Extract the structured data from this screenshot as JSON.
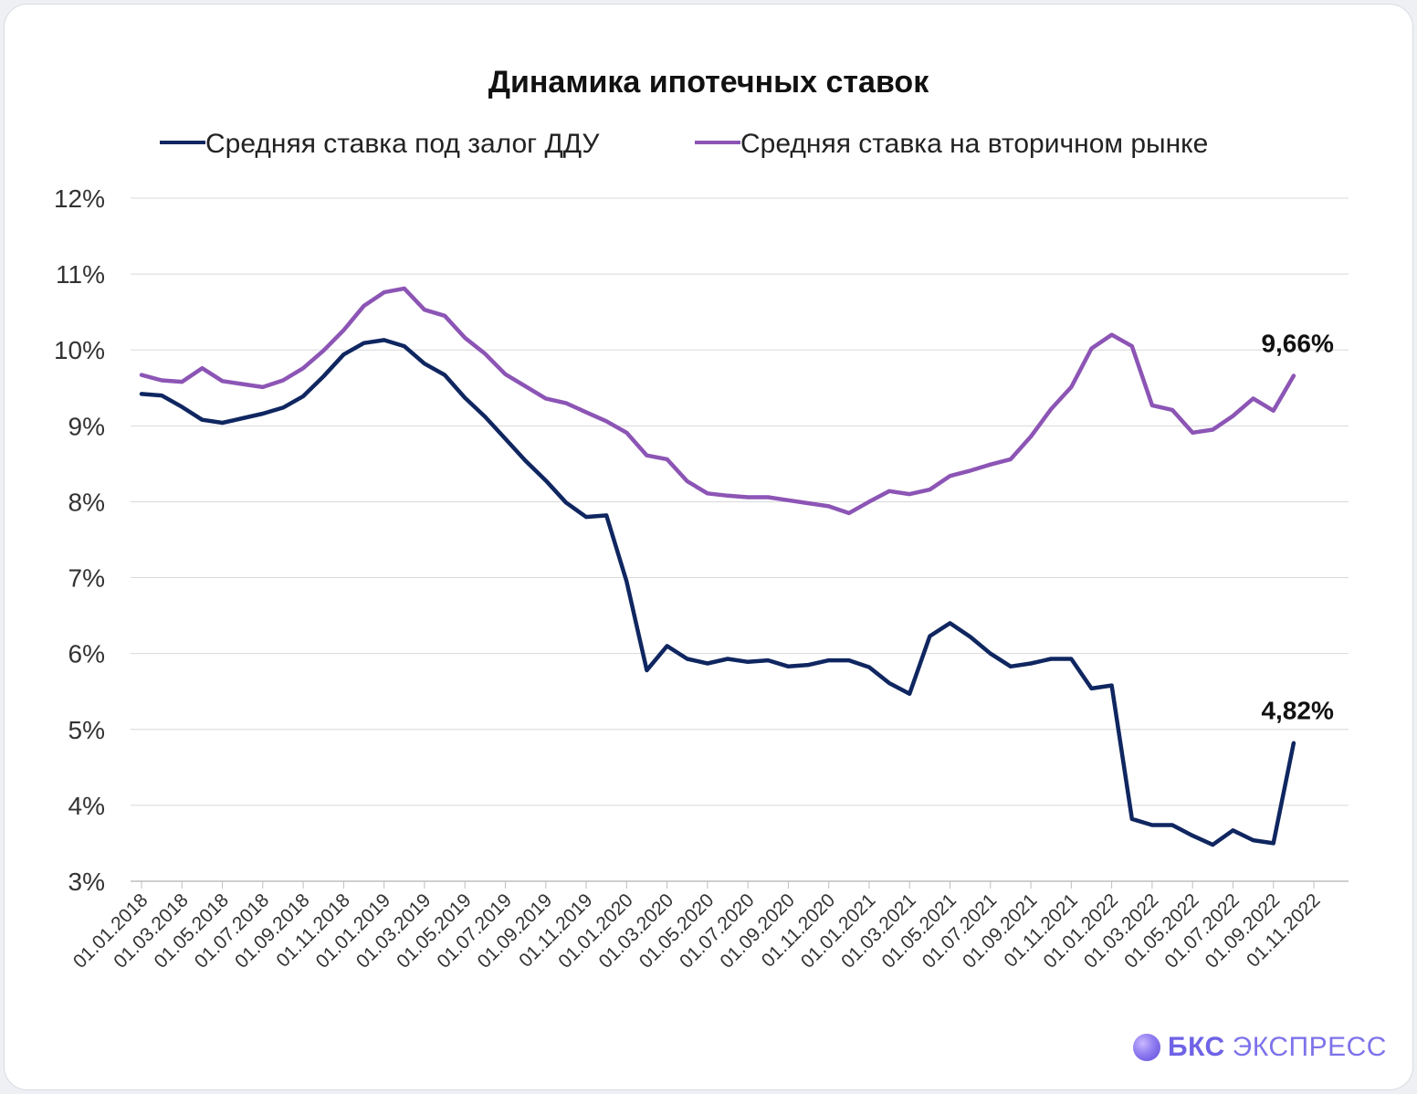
{
  "chart_data": {
    "type": "line",
    "title": "Динамика ипотечных ставок",
    "xlabel": "",
    "ylabel": "",
    "ylim": [
      3,
      12
    ],
    "yticks": [
      "3%",
      "4%",
      "5%",
      "6%",
      "7%",
      "8%",
      "9%",
      "10%",
      "11%",
      "12%"
    ],
    "grid": true,
    "legend_position": "top",
    "x_tick_labels": [
      "01.01.2018",
      "01.03.2018",
      "01.05.2018",
      "01.07.2018",
      "01.09.2018",
      "01.11.2018",
      "01.01.2019",
      "01.03.2019",
      "01.05.2019",
      "01.07.2019",
      "01.09.2019",
      "01.11.2019",
      "01.01.2020",
      "01.03.2020",
      "01.05.2020",
      "01.07.2020",
      "01.09.2020",
      "01.11.2020",
      "01.01.2021",
      "01.03.2021",
      "01.05.2021",
      "01.07.2021",
      "01.09.2021",
      "01.11.2021",
      "01.01.2022",
      "01.03.2022",
      "01.05.2022",
      "01.07.2022",
      "01.09.2022",
      "01.11.2022"
    ],
    "x": [
      "01.01.2018",
      "01.02.2018",
      "01.03.2018",
      "01.04.2018",
      "01.05.2018",
      "01.06.2018",
      "01.07.2018",
      "01.08.2018",
      "01.09.2018",
      "01.10.2018",
      "01.11.2018",
      "01.12.2018",
      "01.01.2019",
      "01.02.2019",
      "01.03.2019",
      "01.04.2019",
      "01.05.2019",
      "01.06.2019",
      "01.07.2019",
      "01.08.2019",
      "01.09.2019",
      "01.10.2019",
      "01.11.2019",
      "01.12.2019",
      "01.01.2020",
      "01.02.2020",
      "01.03.2020",
      "01.04.2020",
      "01.05.2020",
      "01.06.2020",
      "01.07.2020",
      "01.08.2020",
      "01.09.2020",
      "01.10.2020",
      "01.11.2020",
      "01.12.2020",
      "01.01.2021",
      "01.02.2021",
      "01.03.2021",
      "01.04.2021",
      "01.05.2021",
      "01.06.2021",
      "01.07.2021",
      "01.08.2021",
      "01.09.2021",
      "01.10.2021",
      "01.11.2021",
      "01.12.2021",
      "01.01.2022",
      "01.02.2022",
      "01.03.2022",
      "01.04.2022",
      "01.05.2022",
      "01.06.2022",
      "01.07.2022",
      "01.08.2022",
      "01.09.2022",
      "01.10.2022"
    ],
    "series": [
      {
        "name": "Средняя ставка под залог ДДУ",
        "color": "#0f2660",
        "values": [
          9.42,
          9.4,
          9.25,
          9.08,
          9.04,
          9.1,
          9.16,
          9.24,
          9.39,
          9.65,
          9.94,
          10.09,
          10.13,
          10.05,
          9.82,
          9.67,
          9.37,
          9.12,
          8.83,
          8.54,
          8.28,
          7.99,
          7.8,
          7.82,
          6.95,
          5.78,
          6.1,
          5.93,
          5.87,
          5.93,
          5.89,
          5.91,
          5.83,
          5.85,
          5.91,
          5.91,
          5.82,
          5.61,
          5.47,
          6.23,
          6.4,
          6.22,
          6.0,
          5.83,
          5.87,
          5.93,
          5.93,
          5.54,
          5.58,
          3.82,
          3.74,
          3.74,
          3.6,
          3.48,
          3.67,
          3.54,
          3.5,
          4.82
        ]
      },
      {
        "name": "Средняя ставка на вторичном рынке",
        "color": "#8c55b5",
        "values": [
          9.67,
          9.6,
          9.58,
          9.76,
          9.59,
          9.55,
          9.51,
          9.6,
          9.76,
          9.99,
          10.26,
          10.58,
          10.76,
          10.81,
          10.53,
          10.45,
          10.16,
          9.95,
          9.68,
          9.52,
          9.36,
          9.3,
          9.18,
          9.06,
          8.91,
          8.61,
          8.56,
          8.27,
          8.11,
          8.08,
          8.06,
          8.06,
          8.02,
          7.98,
          7.94,
          7.85,
          8.0,
          8.14,
          8.1,
          8.16,
          8.34,
          8.41,
          8.49,
          8.56,
          8.86,
          9.22,
          9.51,
          10.02,
          10.2,
          10.05,
          9.27,
          9.21,
          8.91,
          8.95,
          9.13,
          9.36,
          9.2,
          9.66
        ]
      }
    ],
    "annotations": [
      {
        "series": "Средняя ставка на вторичном рынке",
        "text": "9,66%"
      },
      {
        "series": "Средняя ставка под залог ДДУ",
        "text": "4,82%"
      }
    ]
  },
  "brand": {
    "name": "БКС",
    "sub": "ЭКСПРЕСС",
    "logo_icon": "bks-sphere-logo"
  }
}
